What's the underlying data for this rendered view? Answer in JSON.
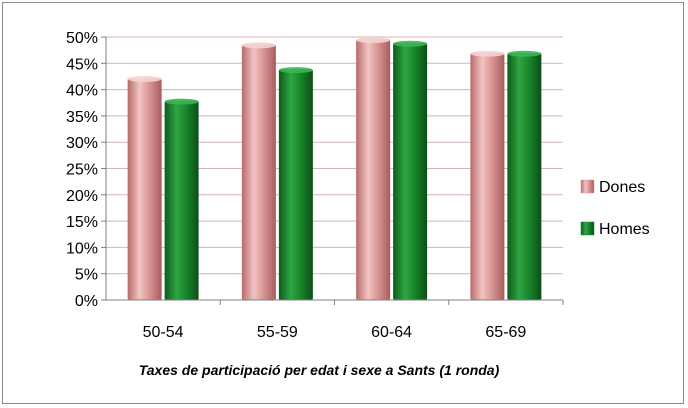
{
  "chart_data": {
    "type": "bar",
    "categories": [
      "50-54",
      "55-59",
      "60-64",
      "65-69"
    ],
    "series": [
      {
        "name": "Dones",
        "values": [
          42.2,
          48.6,
          49.6,
          47.0
        ],
        "color": "#d99594"
      },
      {
        "name": "Homes",
        "values": [
          37.9,
          43.9,
          48.9,
          47.0
        ],
        "color": "#1a8a2e"
      }
    ],
    "xlabel": "Taxes de participació per edat i sexe  a Sants (1 ronda)",
    "ylabel": "",
    "ylim": [
      0,
      50
    ],
    "yticks": [
      "0%",
      "5%",
      "10%",
      "15%",
      "20%",
      "25%",
      "30%",
      "35%",
      "40%",
      "45%",
      "50%"
    ],
    "grid": true,
    "legend_position": "right"
  }
}
